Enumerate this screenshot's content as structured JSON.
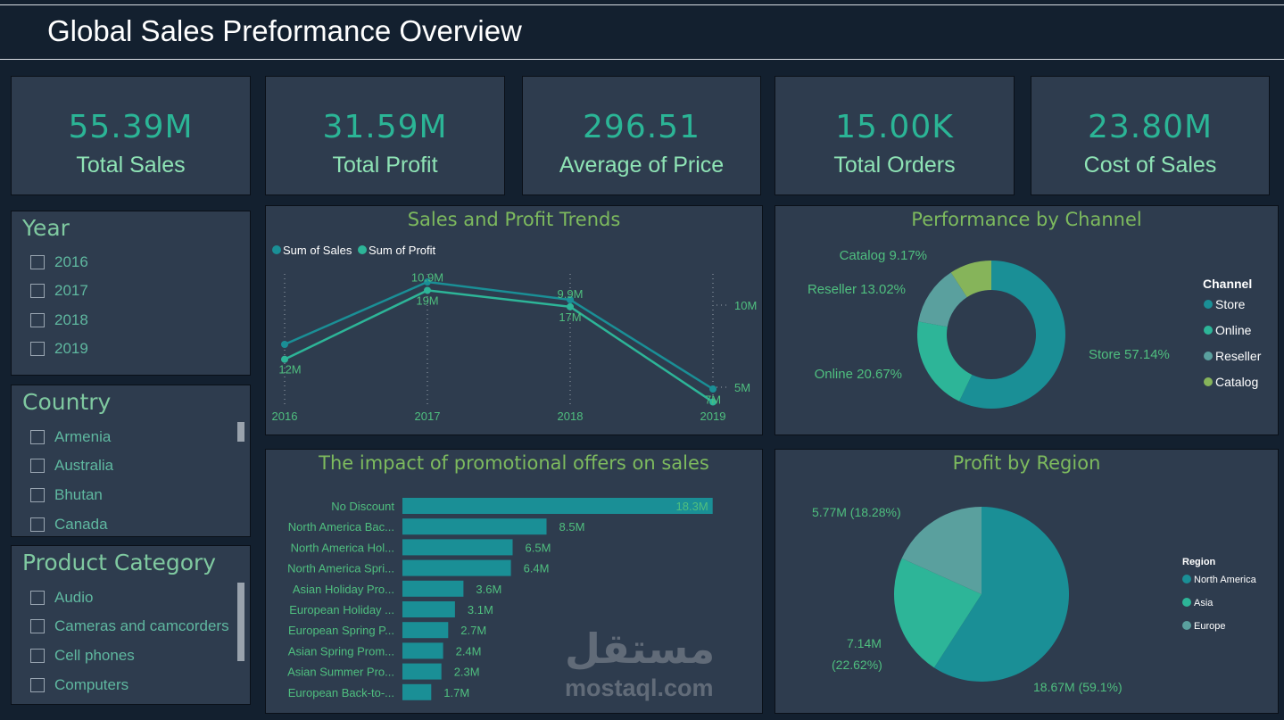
{
  "header": {
    "title": "Global Sales Preformance Overview"
  },
  "kpis": [
    {
      "value": "55.39M",
      "label": "Total Sales"
    },
    {
      "value": "31.59M",
      "label": "Total Profit"
    },
    {
      "value": "296.51",
      "label": "Average of Price"
    },
    {
      "value": "15.00K",
      "label": "Total Orders"
    },
    {
      "value": "23.80M",
      "label": "Cost of Sales"
    }
  ],
  "slicers": {
    "year": {
      "title": "Year",
      "items": [
        "2016",
        "2017",
        "2018",
        "2019"
      ]
    },
    "country": {
      "title": "Country",
      "items": [
        "Armenia",
        "Australia",
        "Bhutan",
        "Canada"
      ]
    },
    "category": {
      "title": "Product Category",
      "items": [
        "Audio",
        "Cameras and camcorders",
        "Cell phones",
        "Computers"
      ]
    }
  },
  "colors": {
    "sales": "#1a8f96",
    "profit": "#2db598",
    "reseller": "#5aa09e",
    "catalog": "#86b45a",
    "title": "#7dba5e",
    "label": "#4fbf7f"
  },
  "watermark": {
    "text": "mostaql.com",
    "arabic": "مستقل"
  },
  "chart_data": [
    {
      "type": "line",
      "title": "Sales and Profit Trends",
      "x": [
        "2016",
        "2017",
        "2018",
        "2019"
      ],
      "series": [
        {
          "name": "Sum of Sales",
          "values": [
            12,
            19,
            17,
            7
          ],
          "labels": [
            "12M",
            "19M",
            "17M",
            "7M"
          ]
        },
        {
          "name": "Sum of Profit",
          "values": [
            6.7,
            10.9,
            9.9,
            4.1
          ],
          "labels": [
            "",
            "10.9M",
            "9.9M",
            ""
          ]
        }
      ],
      "right_axis_ticks": [
        "5M",
        "10M"
      ],
      "legend": "top-left"
    },
    {
      "type": "bar",
      "title": "The impact of promotional offers on sales",
      "categories": [
        "No Discount",
        "North America Bac...",
        "North America Hol...",
        "North America Spri...",
        "Asian Holiday Pro...",
        "European Holiday ...",
        "European Spring P...",
        "Asian Spring Prom...",
        "Asian Summer Pro...",
        "European Back-to-..."
      ],
      "values": [
        18.3,
        8.5,
        6.5,
        6.4,
        3.6,
        3.1,
        2.7,
        2.4,
        2.3,
        1.7
      ],
      "labels": [
        "18.3M",
        "8.5M",
        "6.5M",
        "6.4M",
        "3.6M",
        "3.1M",
        "2.7M",
        "2.4M",
        "2.3M",
        "1.7M"
      ]
    },
    {
      "type": "pie",
      "subtype": "donut",
      "title": "Performance by Channel",
      "legend_title": "Channel",
      "legend": "right",
      "categories": [
        "Store",
        "Online",
        "Reseller",
        "Catalog"
      ],
      "values": [
        57.14,
        20.67,
        13.02,
        9.17
      ],
      "labels": [
        "Store 57.14%",
        "Online 20.67%",
        "Reseller 13.02%",
        "Catalog 9.17%"
      ]
    },
    {
      "type": "pie",
      "title": "Profit by Region",
      "legend_title": "Region",
      "legend": "right",
      "categories": [
        "North America",
        "Asia",
        "Europe"
      ],
      "values": [
        18.67,
        7.14,
        5.77
      ],
      "percents": [
        59.1,
        22.62,
        18.28
      ],
      "labels": [
        "18.67M (59.1%)",
        "7.14M",
        "(22.62%)",
        "5.77M (18.28%)"
      ]
    }
  ]
}
